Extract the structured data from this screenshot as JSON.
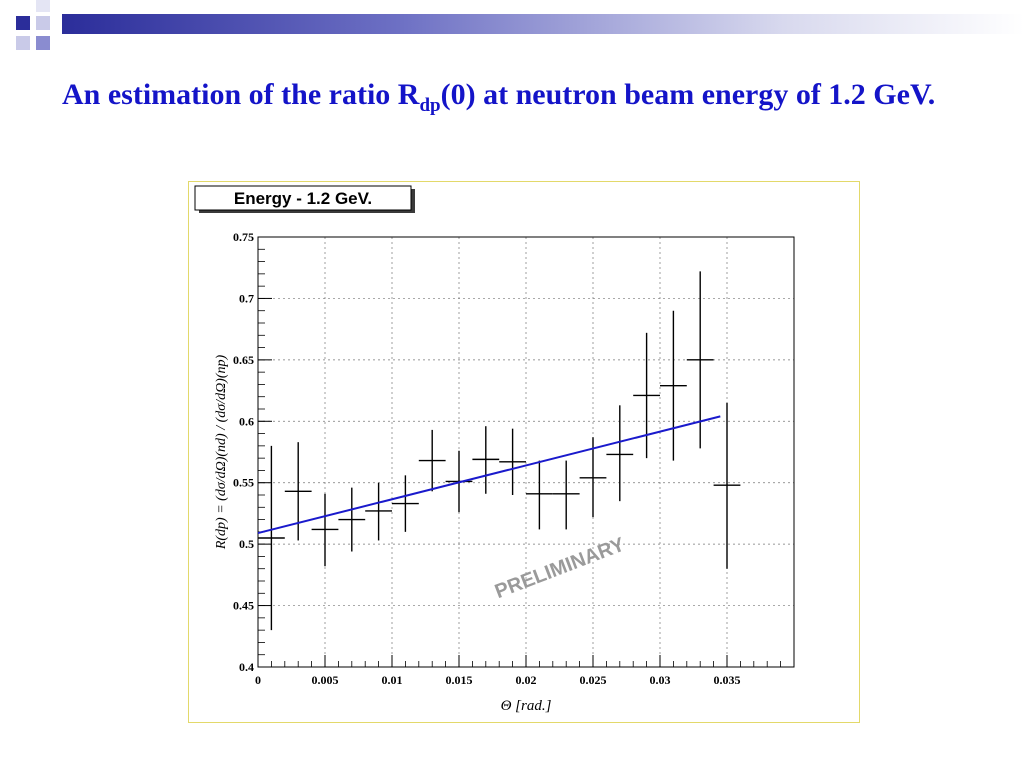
{
  "slide": {
    "title_main": "An estimation of the ratio R",
    "title_sub": "dp",
    "title_rest": "(0) at neutron beam energy of 1.2 GeV.",
    "colors": {
      "title": "#1414c8",
      "header_dark": "#2b2d9a",
      "frame_border": "#e3d96a"
    }
  },
  "chart_data": {
    "type": "scatter",
    "title": "Energy - 1.2 GeV.",
    "xlabel": "Θ [rad.]",
    "ylabel": "R(dp) = (dσ/dΩ)(nd) / (dσ/dΩ)(np)",
    "xlim": [
      0,
      0.04
    ],
    "ylim": [
      0.4,
      0.75
    ],
    "xticks": [
      0,
      0.005,
      0.01,
      0.015,
      0.02,
      0.025,
      0.03,
      0.035
    ],
    "xtick_labels": [
      "0",
      "0.005",
      "0.01",
      "0.015",
      "0.02",
      "0.025",
      "0.03",
      "0.035"
    ],
    "yticks": [
      0.4,
      0.45,
      0.5,
      0.55,
      0.6,
      0.65,
      0.7,
      0.75
    ],
    "ytick_labels": [
      "0.4",
      "0.45",
      "0.5",
      "0.55",
      "0.6",
      "0.65",
      "0.7",
      "0.75"
    ],
    "grid": true,
    "watermark": "PRELIMINARY",
    "series": [
      {
        "points": [
          {
            "x": 0.001,
            "y": 0.505,
            "xerr": 0.001,
            "ylo": 0.43,
            "yhi": 0.58
          },
          {
            "x": 0.003,
            "y": 0.543,
            "xerr": 0.001,
            "ylo": 0.503,
            "yhi": 0.583
          },
          {
            "x": 0.005,
            "y": 0.512,
            "xerr": 0.001,
            "ylo": 0.482,
            "yhi": 0.541
          },
          {
            "x": 0.007,
            "y": 0.52,
            "xerr": 0.001,
            "ylo": 0.494,
            "yhi": 0.546
          },
          {
            "x": 0.009,
            "y": 0.527,
            "xerr": 0.001,
            "ylo": 0.503,
            "yhi": 0.55
          },
          {
            "x": 0.011,
            "y": 0.533,
            "xerr": 0.001,
            "ylo": 0.51,
            "yhi": 0.556
          },
          {
            "x": 0.013,
            "y": 0.568,
            "xerr": 0.001,
            "ylo": 0.543,
            "yhi": 0.593
          },
          {
            "x": 0.015,
            "y": 0.551,
            "xerr": 0.001,
            "ylo": 0.526,
            "yhi": 0.576
          },
          {
            "x": 0.017,
            "y": 0.569,
            "xerr": 0.001,
            "ylo": 0.541,
            "yhi": 0.596
          },
          {
            "x": 0.019,
            "y": 0.567,
            "xerr": 0.001,
            "ylo": 0.54,
            "yhi": 0.594
          },
          {
            "x": 0.021,
            "y": 0.541,
            "xerr": 0.001,
            "ylo": 0.512,
            "yhi": 0.568
          },
          {
            "x": 0.023,
            "y": 0.541,
            "xerr": 0.001,
            "ylo": 0.512,
            "yhi": 0.568
          },
          {
            "x": 0.025,
            "y": 0.554,
            "xerr": 0.001,
            "ylo": 0.522,
            "yhi": 0.587
          },
          {
            "x": 0.027,
            "y": 0.573,
            "xerr": 0.001,
            "ylo": 0.535,
            "yhi": 0.613
          },
          {
            "x": 0.029,
            "y": 0.621,
            "xerr": 0.001,
            "ylo": 0.57,
            "yhi": 0.672
          },
          {
            "x": 0.031,
            "y": 0.629,
            "xerr": 0.001,
            "ylo": 0.568,
            "yhi": 0.69
          },
          {
            "x": 0.033,
            "y": 0.65,
            "xerr": 0.001,
            "ylo": 0.578,
            "yhi": 0.722
          },
          {
            "x": 0.035,
            "y": 0.548,
            "xerr": 0.001,
            "ylo": 0.48,
            "yhi": 0.615
          }
        ],
        "color": "#000000"
      },
      {
        "type": "line",
        "fit": true,
        "x": [
          0.0,
          0.0345
        ],
        "y": [
          0.509,
          0.604
        ],
        "color": "#1a1acc"
      }
    ]
  }
}
